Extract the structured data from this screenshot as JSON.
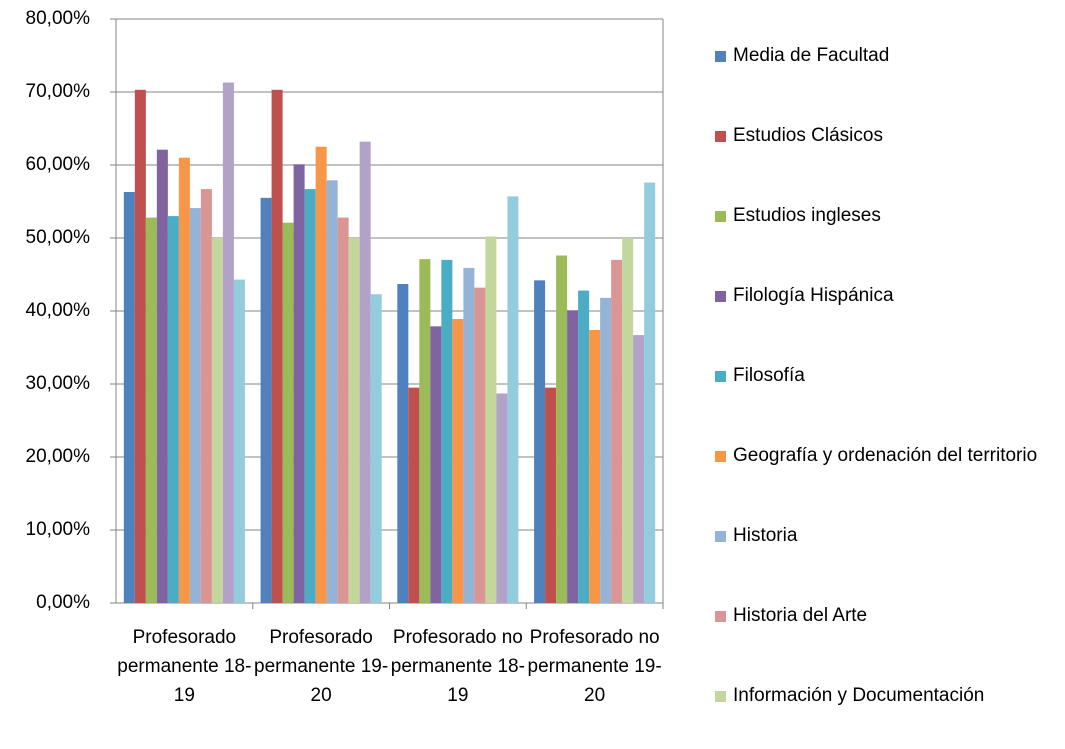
{
  "chart_data": {
    "type": "bar",
    "categories": [
      "Profesorado permanente 18-19",
      "Profesorado permanente 19-20",
      "Profesorado no permanente 18-19",
      "Profesorado no permanente 19-20"
    ],
    "series": [
      {
        "name": "Media de Facultad",
        "color": "#4f81bd",
        "values": [
          56.3,
          55.5,
          43.7,
          44.2
        ]
      },
      {
        "name": "Estudios Clásicos",
        "color": "#c0504d",
        "values": [
          70.3,
          70.3,
          29.5,
          29.5
        ]
      },
      {
        "name": "Estudios ingleses",
        "color": "#9bbb59",
        "values": [
          52.8,
          52.1,
          47.1,
          47.6
        ]
      },
      {
        "name": "Filología Hispánica",
        "color": "#8064a2",
        "values": [
          62.1,
          60.1,
          37.9,
          40.1
        ]
      },
      {
        "name": "Filosofía",
        "color": "#4bacc6",
        "values": [
          53.0,
          56.7,
          47.0,
          42.8
        ]
      },
      {
        "name": "Geografía y ordenación del territorio",
        "color": "#f79646",
        "values": [
          61.0,
          62.5,
          38.9,
          37.4
        ]
      },
      {
        "name": "Historia",
        "color": "#95b3d7",
        "values": [
          54.1,
          57.9,
          45.9,
          41.8
        ]
      },
      {
        "name": "Historia del Arte",
        "color": "#d99694",
        "values": [
          56.7,
          52.8,
          43.2,
          47.0
        ]
      },
      {
        "name": "Información y Documentación",
        "color": "#c3d69b",
        "values": [
          50.0,
          50.0,
          50.2,
          50.0
        ]
      },
      {
        "name": null,
        "color": "#b2a2c7",
        "values": [
          71.3,
          63.2,
          28.7,
          36.7
        ]
      },
      {
        "name": null,
        "color": "#93cddd",
        "values": [
          44.3,
          42.3,
          55.7,
          57.6
        ]
      }
    ],
    "ylim": [
      0,
      80
    ],
    "yticks": [
      {
        "value": 0,
        "label": "0,00%"
      },
      {
        "value": 10,
        "label": "10,00%"
      },
      {
        "value": 20,
        "label": "20,00%"
      },
      {
        "value": 30,
        "label": "30,00%"
      },
      {
        "value": 40,
        "label": "40,00%"
      },
      {
        "value": 50,
        "label": "50,00%"
      },
      {
        "value": 60,
        "label": "60,00%"
      },
      {
        "value": 70,
        "label": "70,00%"
      },
      {
        "value": 80,
        "label": "80,00%"
      }
    ],
    "grid": true
  }
}
